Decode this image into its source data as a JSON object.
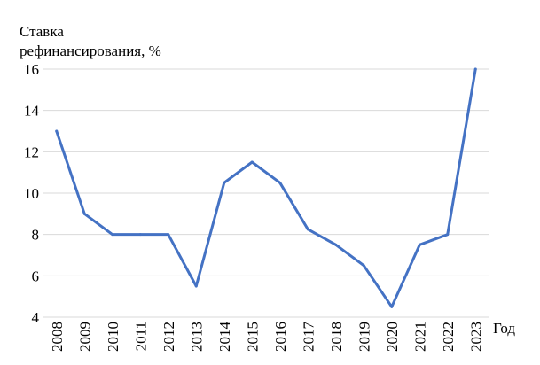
{
  "chart_data": {
    "type": "line",
    "ylabel_lines": [
      "Ставка",
      "рефинансирования, %"
    ],
    "xlabel": "Год",
    "categories": [
      "2008",
      "2009",
      "2010",
      "2011",
      "2012",
      "2013",
      "2014",
      "2015",
      "2016",
      "2017",
      "2018",
      "2019",
      "2020",
      "2021",
      "2022",
      "2023"
    ],
    "series": [
      {
        "values": [
          13,
          9,
          8,
          8,
          8,
          5.5,
          10.5,
          11.5,
          10.5,
          8.25,
          7.5,
          6.5,
          4.5,
          7.5,
          8,
          16
        ]
      }
    ],
    "ylim": [
      4,
      16
    ],
    "yticks": [
      4,
      6,
      8,
      10,
      12,
      14,
      16
    ],
    "grid": "horizontal",
    "line_color": "#4472c4",
    "grid_color": "#d9d9d9"
  }
}
